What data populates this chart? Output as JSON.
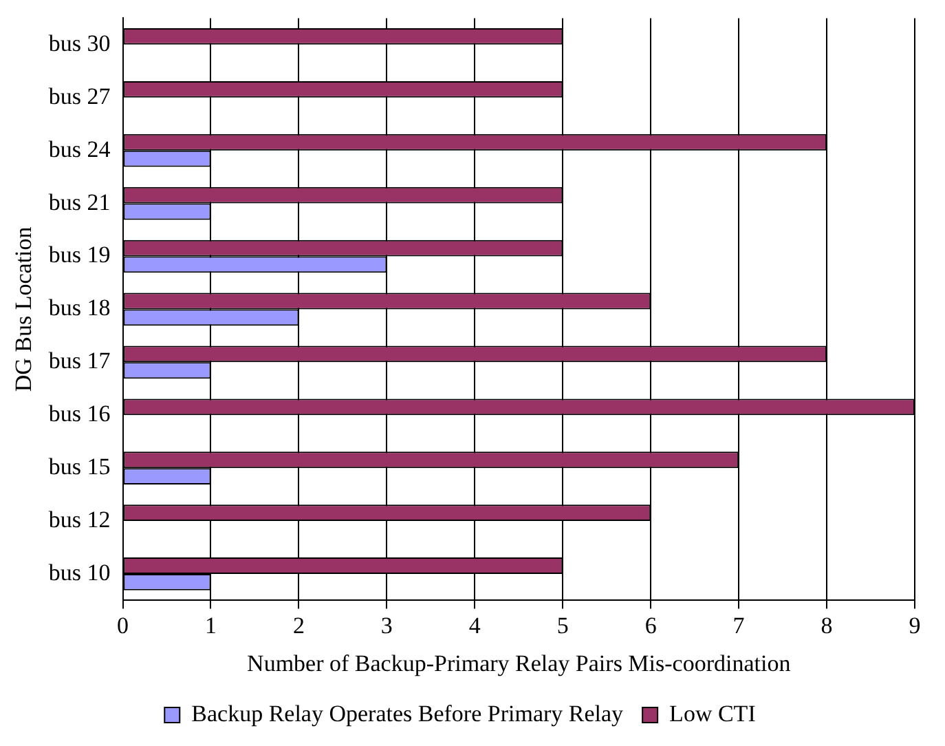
{
  "chart_data": {
    "type": "bar",
    "orientation": "horizontal",
    "ylabel": "DG Bus Location",
    "xlabel": "Number of Backup-Primary Relay Pairs Mis-coordination",
    "categories": [
      "bus 30",
      "bus 27",
      "bus 24",
      "bus 21",
      "bus 19",
      "bus 18",
      "bus 17",
      "bus 16",
      "bus 15",
      "bus 12",
      "bus 10"
    ],
    "series": [
      {
        "name": "Backup Relay Operates Before Primary Relay",
        "color": "#9999ff",
        "values": [
          0,
          0,
          1,
          1,
          3,
          2,
          1,
          0,
          1,
          0,
          1
        ]
      },
      {
        "name": "Low CTI",
        "color": "#993366",
        "values": [
          5,
          5,
          8,
          5,
          5,
          6,
          8,
          9,
          7,
          6,
          5
        ]
      }
    ],
    "xlim": [
      0,
      9
    ],
    "xticks": [
      0,
      1,
      2,
      3,
      4,
      5,
      6,
      7,
      8,
      9
    ],
    "grid": "x",
    "legend": "bottom"
  }
}
